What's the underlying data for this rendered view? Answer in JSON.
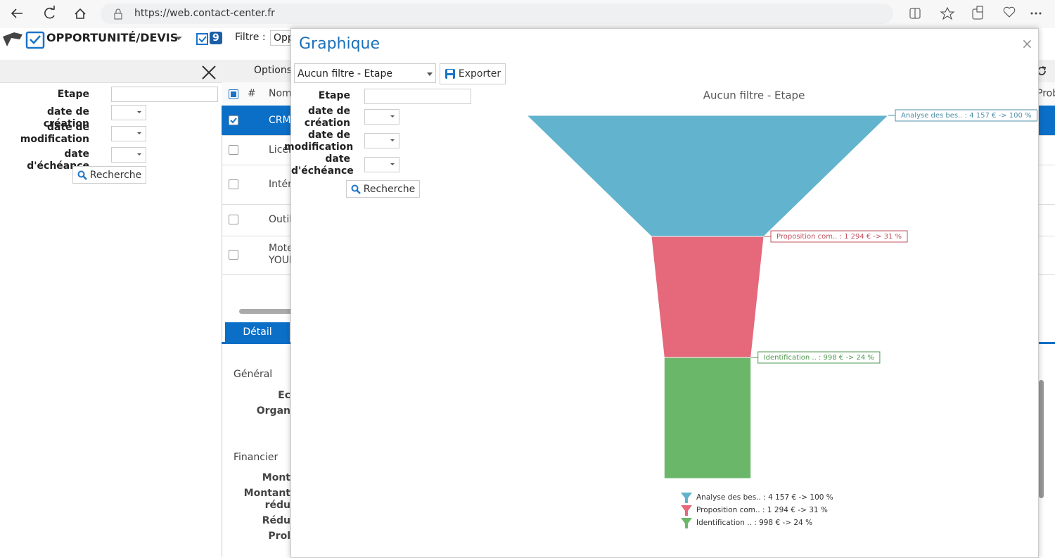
{
  "browser": {
    "url": "https://web.contact-center.fr"
  },
  "app": {
    "title": "OPPORTUNITÉ/DEVIS",
    "badge": "9",
    "filter_label": "Filtre :",
    "filter_value": "Opp"
  },
  "left_panel": {
    "fields": [
      "Etape",
      "date de création",
      "date de modification",
      "date d'échéance"
    ],
    "search": "Recherche"
  },
  "grid": {
    "options": "Options",
    "headers": [
      "#",
      "Nom"
    ],
    "rows": [
      "CRM",
      "Licen",
      "Intér",
      "Outil",
      "Mote YOUI"
    ],
    "right_header": "Prob"
  },
  "detail": {
    "tab": "Détail",
    "general": "Général",
    "general_fields": [
      "Ec",
      "Organ"
    ],
    "financier": "Financier",
    "financier_fields": [
      "Mont",
      "Montant rédu",
      "Rédu",
      "Prol"
    ]
  },
  "modal": {
    "title": "Graphique",
    "close": "×",
    "select": "Aucun filtre - Etape",
    "export": "Exporter",
    "fields": [
      "Etape",
      "date de création",
      "date de modification",
      "date d'échéance"
    ],
    "search": "Recherche"
  },
  "chart_data": {
    "type": "funnel",
    "title": "Aucun filtre - Etape",
    "categories": [
      "Analyse des bes..",
      "Proposition com..",
      "Identification .."
    ],
    "values": [
      4157,
      1294,
      998
    ],
    "value_labels": [
      "Analyse des bes.. : 4 157 € -> 100 %",
      "Proposition com.. : 1 294 € -> 31 %",
      "Identification .. : 998 € -> 24 %"
    ],
    "colors": [
      "#62b3cd",
      "#e5687b",
      "#6bb76a"
    ],
    "label_colors": [
      "#4f8fa8",
      "#c2505f",
      "#4f9a4f"
    ]
  }
}
